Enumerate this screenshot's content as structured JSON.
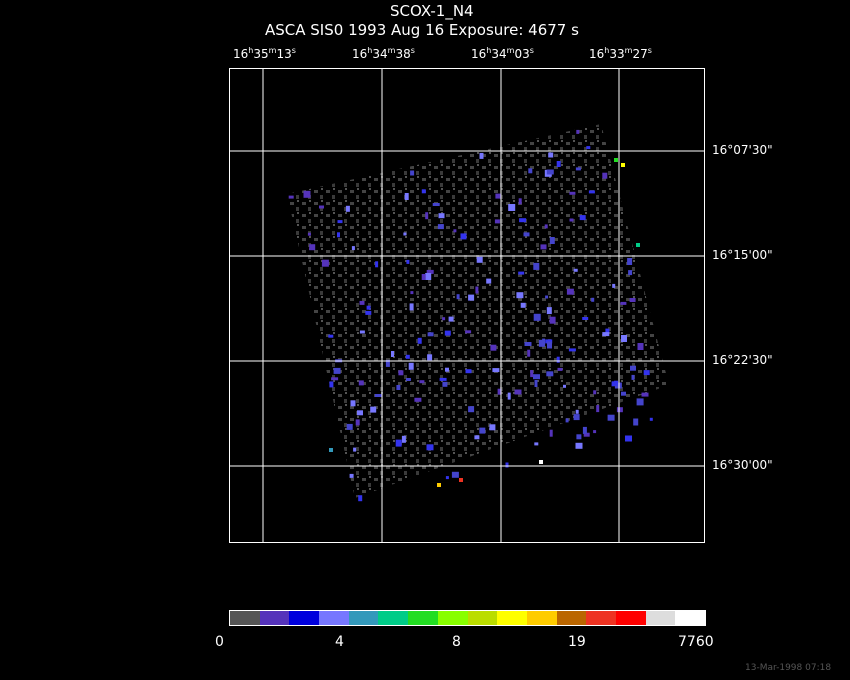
{
  "header": {
    "object": "SCOX-1_N4",
    "line2": "ASCA SIS0    1993 Aug 16    Exposure:  4677 s"
  },
  "ra_ticks": [
    {
      "h": "16",
      "m": "35",
      "s": "13"
    },
    {
      "h": "16",
      "m": "34",
      "s": "38"
    },
    {
      "h": "16",
      "m": "34",
      "s": "03"
    },
    {
      "h": "16",
      "m": "33",
      "s": "27"
    }
  ],
  "dec_ticks": [
    "16°07'30\"",
    "16°15'00\"",
    "16°22'30\"",
    "16°30'00\""
  ],
  "colorbar": {
    "colors": [
      "#555555",
      "#5533bb",
      "#0000dd",
      "#7777ff",
      "#3399bb",
      "#00cc88",
      "#22dd22",
      "#88ff00",
      "#bbdd00",
      "#ffff00",
      "#ffcc00",
      "#bb6600",
      "#ee3322",
      "#ff0000",
      "#dddddd",
      "#ffffff"
    ],
    "labels": [
      "0",
      "4",
      "8",
      "19",
      "7760"
    ]
  },
  "footer_date": "13-Mar-1998 07:18"
}
